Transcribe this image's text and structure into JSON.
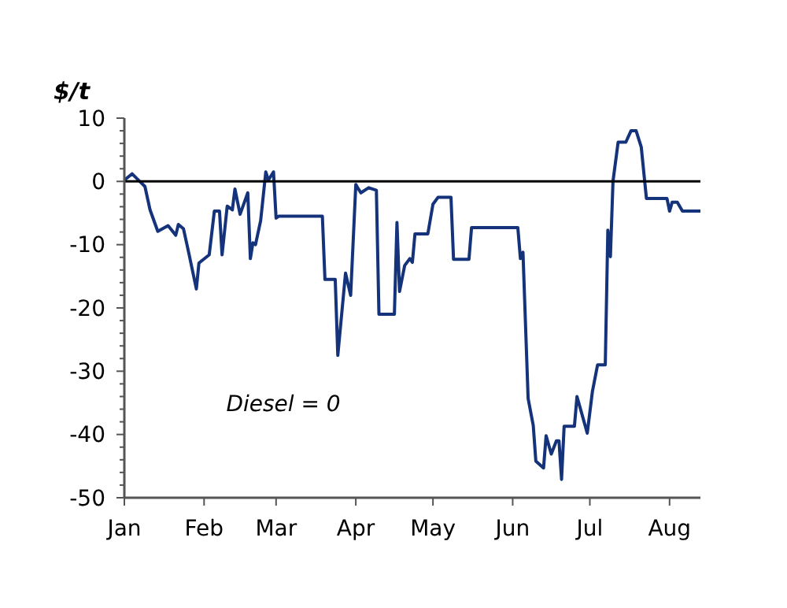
{
  "chart_data": {
    "type": "line",
    "ylabel": "$/t",
    "annotations": [
      "Diesel = 0"
    ],
    "x": [
      "--01-01",
      "--01-04",
      "--01-07",
      "--01-09",
      "--01-11",
      "--01-14",
      "--01-18",
      "--01-21",
      "--01-22",
      "--01-24",
      "--01-26",
      "--01-29",
      "--01-30",
      "--02-03",
      "--02-05",
      "--02-07",
      "--02-08",
      "--02-10",
      "--02-12",
      "--02-13",
      "--02-15",
      "--02-18",
      "--02-19",
      "--02-20",
      "--02-21",
      "--02-23",
      "--02-25",
      "--02-26",
      "--02-28",
      "--03-01",
      "--03-02",
      "--03-19",
      "--03-20",
      "--03-24",
      "--03-25",
      "--03-28",
      "--03-30",
      "--04-01",
      "--04-02",
      "--04-03",
      "--04-06",
      "--04-09",
      "--04-10",
      "--04-16",
      "--04-17",
      "--04-18",
      "--04-20",
      "--04-22",
      "--04-23",
      "--04-24",
      "--04-29",
      "--05-01",
      "--05-03",
      "--05-08",
      "--05-09",
      "--05-15",
      "--05-16",
      "--06-03",
      "--06-04",
      "--06-05",
      "--06-07",
      "--06-09",
      "--06-10",
      "--06-13",
      "--06-14",
      "--06-16",
      "--06-18",
      "--06-19",
      "--06-20",
      "--06-21",
      "--06-25",
      "--06-26",
      "--06-30",
      "--07-02",
      "--07-04",
      "--07-07",
      "--07-08",
      "--07-09",
      "--07-10",
      "--07-12",
      "--07-15",
      "--07-17",
      "--07-19",
      "--07-21",
      "--07-23",
      "--07-31",
      "--08-01",
      "--08-02",
      "--08-04",
      "--08-06",
      "--08-13"
    ],
    "series": [
      {
        "color": "#14337a",
        "values": [
          0.2,
          1.2,
          0,
          -0.8,
          -4.5,
          -7.9,
          -7,
          -8.5,
          -6.8,
          -7.5,
          -11.2,
          -17,
          -12.9,
          -11.6,
          -4.7,
          -4.7,
          -11.6,
          -3.9,
          -4.5,
          -1.2,
          -5.2,
          -1.8,
          -12.2,
          -9.7,
          -10,
          -6.2,
          1.5,
          0.2,
          1.5,
          -5.8,
          -5.5,
          -5.5,
          -15.5,
          -15.5,
          -27.5,
          -14.5,
          -18,
          -0.5,
          -1.2,
          -1.8,
          -1,
          -1.4,
          -21,
          -21,
          -6.5,
          -17.4,
          -13.3,
          -12.2,
          -12.8,
          -8.3,
          -8.3,
          -3.6,
          -2.5,
          -2.5,
          -12.3,
          -12.3,
          -7.3,
          -7.3,
          -12.2,
          -11.2,
          -34.3,
          -38.6,
          -44.2,
          -45.3,
          -40.2,
          -43.1,
          -41,
          -41,
          -47.1,
          -38.7,
          -38.7,
          -34,
          -39.8,
          -33.2,
          -29,
          -29,
          -7.7,
          -11.9,
          0,
          6.2,
          6.2,
          8,
          8,
          5.4,
          -2.7,
          -2.7,
          -4.7,
          -3.3,
          -3.3,
          -4.7,
          -4.7
        ]
      }
    ],
    "xlim": [
      "--01-01",
      "--08-13"
    ],
    "xticks": [
      {
        "value": "--01-01",
        "label": "Jan"
      },
      {
        "value": "--02-01",
        "label": "Feb"
      },
      {
        "value": "--03-01",
        "label": "Mar"
      },
      {
        "value": "--04-01",
        "label": "Apr"
      },
      {
        "value": "--05-01",
        "label": "May"
      },
      {
        "value": "--06-01",
        "label": "Jun"
      },
      {
        "value": "--07-01",
        "label": "Jul"
      },
      {
        "value": "--08-01",
        "label": "Aug"
      }
    ],
    "ylim": [
      -50,
      10
    ],
    "yticks": [
      -50,
      {
        "value": -48,
        "label": null
      },
      {
        "value": -46,
        "label": null
      },
      {
        "value": -44,
        "label": null
      },
      {
        "value": -42,
        "label": null
      },
      -40,
      {
        "value": -38,
        "label": null
      },
      {
        "value": -36,
        "label": null
      },
      {
        "value": -34,
        "label": null
      },
      {
        "value": -32,
        "label": null
      },
      -30,
      {
        "value": -28,
        "label": null
      },
      {
        "value": -26,
        "label": null
      },
      {
        "value": -24,
        "label": null
      },
      {
        "value": -22,
        "label": null
      },
      -20,
      {
        "value": -18,
        "label": null
      },
      {
        "value": -16,
        "label": null
      },
      {
        "value": -14,
        "label": null
      },
      {
        "value": -12,
        "label": null
      },
      -10,
      {
        "value": -8,
        "label": null
      },
      {
        "value": -6,
        "label": null
      },
      {
        "value": -4,
        "label": null
      },
      {
        "value": -2,
        "label": null
      },
      0,
      {
        "value": 2,
        "label": null
      },
      {
        "value": 4,
        "label": null
      },
      {
        "value": 6,
        "label": null
      },
      {
        "value": 8,
        "label": null
      },
      10
    ],
    "ref_lines": [
      {
        "axis": "y",
        "value": 0,
        "color": "#000000"
      }
    ],
    "grid": false,
    "marker": "none",
    "line_style": "solid"
  }
}
